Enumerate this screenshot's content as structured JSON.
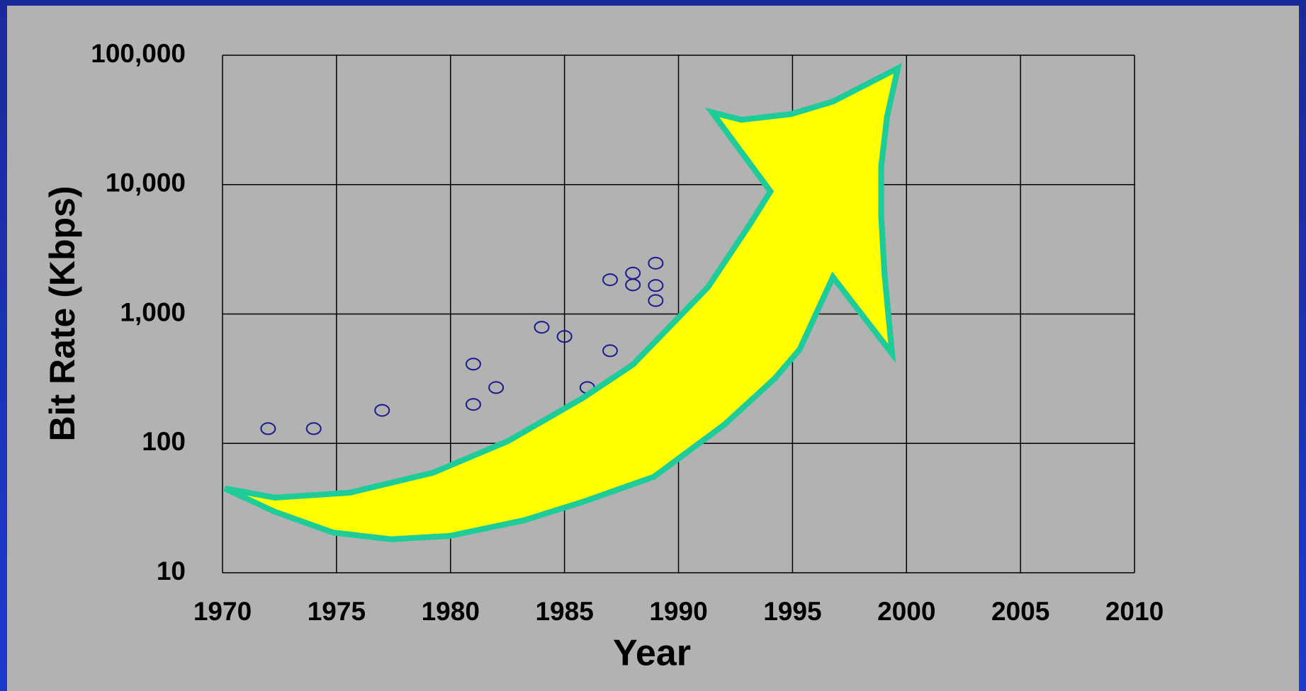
{
  "chart_data": {
    "type": "scatter",
    "y_title": "Bit Rate (Kbps)",
    "x_title": "Year",
    "x": [
      1972,
      1974,
      1977,
      1981,
      1981,
      1982,
      1984,
      1985,
      1986,
      1987,
      1987,
      1988,
      1988,
      1989,
      1989,
      1989
    ],
    "values": [
      130,
      130,
      180,
      410,
      200,
      270,
      790,
      670,
      270,
      520,
      1840,
      2070,
      1680,
      2470,
      1660,
      1270
    ],
    "color": "#1a1a8c",
    "xlim": [
      1970,
      2010
    ],
    "xticks": [
      1970,
      1975,
      1980,
      1985,
      1990,
      1995,
      2000,
      2005,
      2010
    ],
    "ylim": [
      10,
      100000
    ],
    "yticks": [
      10,
      100,
      {
        "value": 1000,
        "label": "1,000"
      },
      {
        "value": 10000,
        "label": "10,000"
      },
      {
        "value": 100000,
        "label": "100,000"
      }
    ],
    "log_y": true,
    "grid": true
  }
}
